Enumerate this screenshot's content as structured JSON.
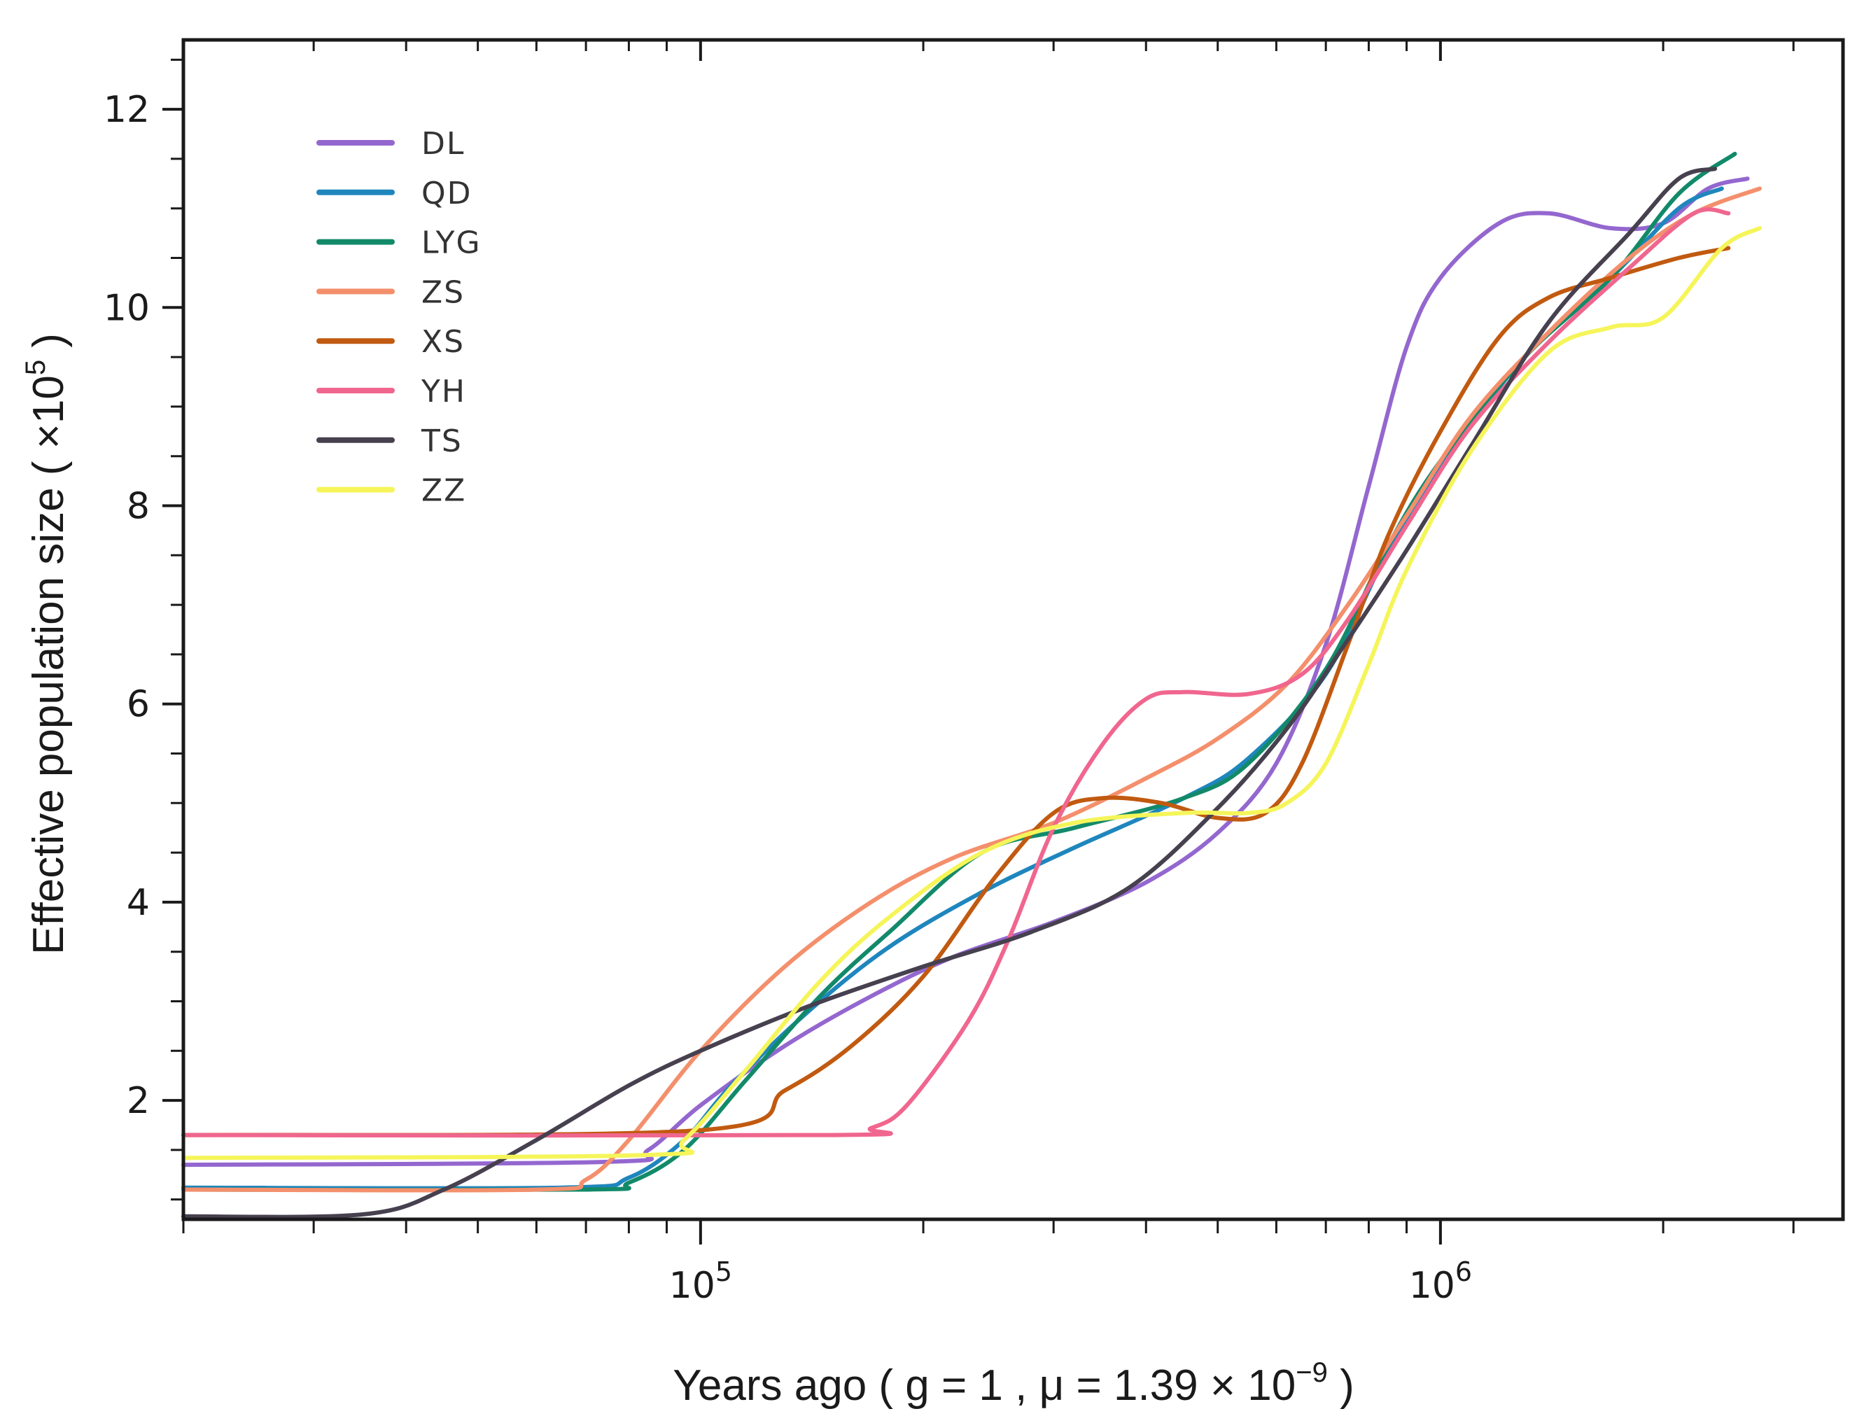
{
  "chart_data": {
    "type": "line",
    "xscale": "log",
    "xlabel": "Years ago ( g = 1 , μ = 1.39 × 10",
    "xlabel_exp": "−9",
    "xlabel_end": " )",
    "ylabel": "Effective population size ( ×10",
    "ylabel_exp": "5",
    "ylabel_end": " )",
    "xlim": [
      20000,
      3500000
    ],
    "ylim": [
      0.8,
      12.7
    ],
    "x_major_ticks": [
      {
        "value": 100000,
        "base": "10",
        "exp": "5"
      },
      {
        "value": 1000000,
        "base": "10",
        "exp": "6"
      }
    ],
    "y_major_ticks": [
      2,
      4,
      6,
      8,
      10,
      12
    ],
    "y_tick_labels": [
      "2",
      "4",
      "6",
      "8",
      "10",
      "12"
    ],
    "legend_position": "top-left",
    "series": [
      {
        "name": "DL",
        "color": "#9467cf",
        "points": [
          [
            20000,
            1.35
          ],
          [
            75000,
            1.38
          ],
          [
            85000,
            1.5
          ],
          [
            100000,
            1.95
          ],
          [
            130000,
            2.55
          ],
          [
            170000,
            3.05
          ],
          [
            220000,
            3.45
          ],
          [
            300000,
            3.8
          ],
          [
            400000,
            4.2
          ],
          [
            500000,
            4.7
          ],
          [
            600000,
            5.4
          ],
          [
            700000,
            6.6
          ],
          [
            800000,
            8.2
          ],
          [
            900000,
            9.6
          ],
          [
            1000000,
            10.3
          ],
          [
            1200000,
            10.85
          ],
          [
            1400000,
            10.95
          ],
          [
            1700000,
            10.8
          ],
          [
            2000000,
            10.85
          ],
          [
            2300000,
            11.2
          ],
          [
            2600000,
            11.3
          ]
        ]
      },
      {
        "name": "QD",
        "color": "#1f86bd",
        "points": [
          [
            20000,
            1.12
          ],
          [
            65000,
            1.12
          ],
          [
            80000,
            1.22
          ],
          [
            95000,
            1.6
          ],
          [
            110000,
            2.15
          ],
          [
            140000,
            2.9
          ],
          [
            180000,
            3.55
          ],
          [
            240000,
            4.1
          ],
          [
            320000,
            4.55
          ],
          [
            450000,
            5.05
          ],
          [
            550000,
            5.45
          ],
          [
            700000,
            6.3
          ],
          [
            850000,
            7.55
          ],
          [
            1000000,
            8.4
          ],
          [
            1300000,
            9.5
          ],
          [
            1700000,
            10.3
          ],
          [
            2100000,
            11.0
          ],
          [
            2400000,
            11.2
          ]
        ]
      },
      {
        "name": "LYG",
        "color": "#128a6a",
        "points": [
          [
            20000,
            1.1
          ],
          [
            70000,
            1.1
          ],
          [
            80000,
            1.17
          ],
          [
            95000,
            1.5
          ],
          [
            115000,
            2.2
          ],
          [
            145000,
            3.05
          ],
          [
            180000,
            3.7
          ],
          [
            240000,
            4.5
          ],
          [
            320000,
            4.75
          ],
          [
            450000,
            5.05
          ],
          [
            550000,
            5.4
          ],
          [
            700000,
            6.35
          ],
          [
            850000,
            7.6
          ],
          [
            1000000,
            8.45
          ],
          [
            1300000,
            9.5
          ],
          [
            1700000,
            10.3
          ],
          [
            2100000,
            11.15
          ],
          [
            2500000,
            11.55
          ]
        ]
      },
      {
        "name": "ZS",
        "color": "#f48f6c",
        "points": [
          [
            20000,
            1.1
          ],
          [
            60000,
            1.1
          ],
          [
            70000,
            1.2
          ],
          [
            80000,
            1.6
          ],
          [
            100000,
            2.5
          ],
          [
            130000,
            3.35
          ],
          [
            170000,
            4.0
          ],
          [
            220000,
            4.45
          ],
          [
            300000,
            4.8
          ],
          [
            400000,
            5.25
          ],
          [
            500000,
            5.65
          ],
          [
            620000,
            6.2
          ],
          [
            750000,
            7.0
          ],
          [
            900000,
            7.9
          ],
          [
            1100000,
            8.9
          ],
          [
            1400000,
            9.75
          ],
          [
            1800000,
            10.5
          ],
          [
            2200000,
            10.95
          ],
          [
            2700000,
            11.2
          ]
        ]
      },
      {
        "name": "XS",
        "color": "#c15a10",
        "points": [
          [
            20000,
            1.65
          ],
          [
            100000,
            1.7
          ],
          [
            130000,
            2.1
          ],
          [
            160000,
            2.55
          ],
          [
            200000,
            3.25
          ],
          [
            250000,
            4.25
          ],
          [
            300000,
            4.9
          ],
          [
            350000,
            5.05
          ],
          [
            420000,
            5.0
          ],
          [
            500000,
            4.85
          ],
          [
            580000,
            4.9
          ],
          [
            650000,
            5.4
          ],
          [
            750000,
            6.6
          ],
          [
            850000,
            7.7
          ],
          [
            1000000,
            8.75
          ],
          [
            1200000,
            9.7
          ],
          [
            1400000,
            10.1
          ],
          [
            1700000,
            10.3
          ],
          [
            2100000,
            10.5
          ],
          [
            2450000,
            10.6
          ]
        ]
      },
      {
        "name": "YH",
        "color": "#f0668e",
        "points": [
          [
            20000,
            1.65
          ],
          [
            150000,
            1.65
          ],
          [
            170000,
            1.72
          ],
          [
            190000,
            1.95
          ],
          [
            230000,
            2.8
          ],
          [
            260000,
            3.6
          ],
          [
            300000,
            4.75
          ],
          [
            350000,
            5.6
          ],
          [
            400000,
            6.05
          ],
          [
            450000,
            6.12
          ],
          [
            550000,
            6.1
          ],
          [
            650000,
            6.3
          ],
          [
            750000,
            6.85
          ],
          [
            900000,
            7.8
          ],
          [
            1100000,
            8.8
          ],
          [
            1400000,
            9.65
          ],
          [
            1800000,
            10.4
          ],
          [
            2200000,
            10.95
          ],
          [
            2450000,
            10.95
          ]
        ]
      },
      {
        "name": "TS",
        "color": "#46404f",
        "points": [
          [
            20000,
            0.83
          ],
          [
            35000,
            0.85
          ],
          [
            45000,
            1.1
          ],
          [
            60000,
            1.6
          ],
          [
            80000,
            2.15
          ],
          [
            100000,
            2.5
          ],
          [
            140000,
            2.95
          ],
          [
            200000,
            3.35
          ],
          [
            280000,
            3.7
          ],
          [
            380000,
            4.15
          ],
          [
            500000,
            4.95
          ],
          [
            620000,
            5.75
          ],
          [
            750000,
            6.65
          ],
          [
            900000,
            7.55
          ],
          [
            1100000,
            8.6
          ],
          [
            1400000,
            9.85
          ],
          [
            1800000,
            10.75
          ],
          [
            2100000,
            11.3
          ],
          [
            2350000,
            11.4
          ]
        ]
      },
      {
        "name": "ZZ",
        "color": "#f5f55a",
        "points": [
          [
            20000,
            1.42
          ],
          [
            85000,
            1.45
          ],
          [
            95000,
            1.6
          ],
          [
            115000,
            2.3
          ],
          [
            145000,
            3.2
          ],
          [
            180000,
            3.85
          ],
          [
            240000,
            4.5
          ],
          [
            320000,
            4.8
          ],
          [
            450000,
            4.9
          ],
          [
            550000,
            4.9
          ],
          [
            620000,
            5.0
          ],
          [
            700000,
            5.4
          ],
          [
            800000,
            6.4
          ],
          [
            900000,
            7.35
          ],
          [
            1100000,
            8.55
          ],
          [
            1400000,
            9.55
          ],
          [
            1700000,
            9.8
          ],
          [
            2000000,
            9.9
          ],
          [
            2400000,
            10.6
          ],
          [
            2700000,
            10.8
          ]
        ]
      }
    ]
  }
}
